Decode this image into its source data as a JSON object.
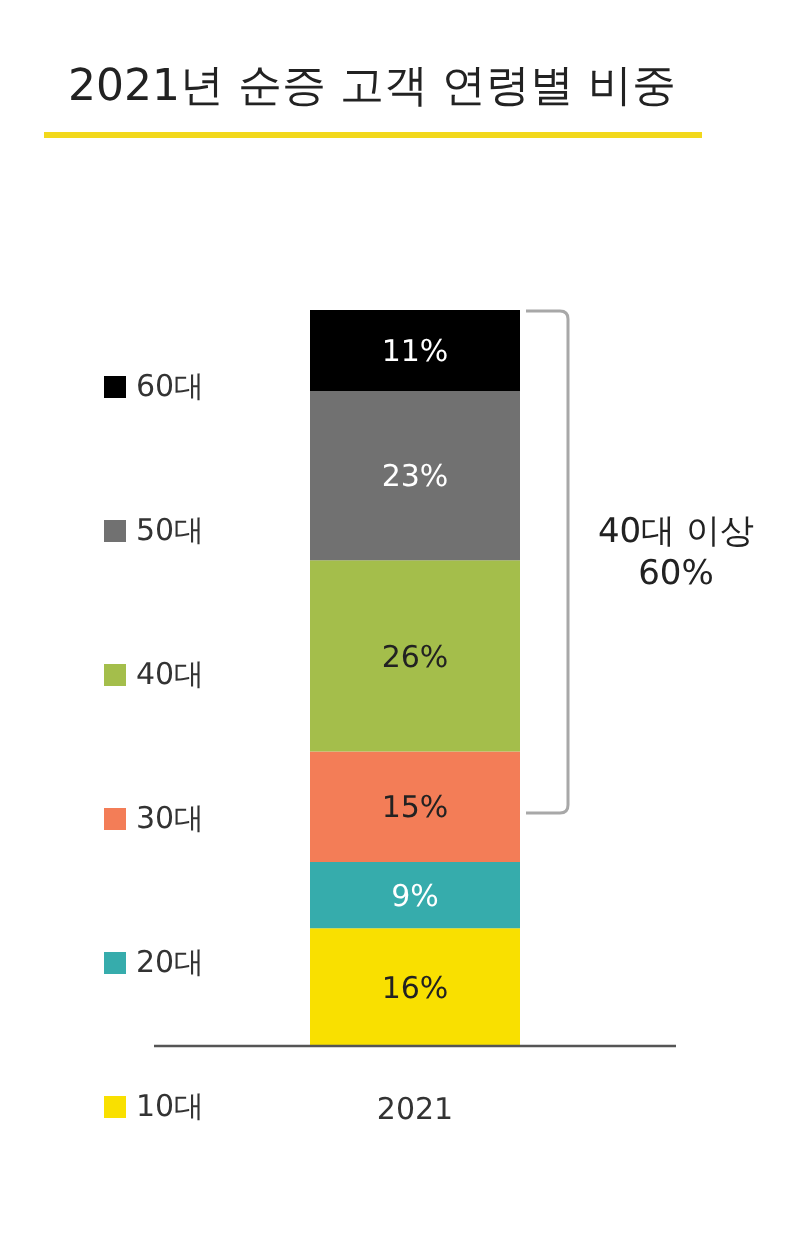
{
  "chart_data": {
    "type": "bar",
    "title": "2021년 순증 고객 연령별 비중",
    "categories": [
      "2021"
    ],
    "stacked": true,
    "series": [
      {
        "name": "10대",
        "color": "#f9e000",
        "values": [
          16
        ],
        "value_labels": [
          "16%"
        ]
      },
      {
        "name": "20대",
        "color": "#36acac",
        "values": [
          9
        ],
        "value_labels": [
          "9%"
        ]
      },
      {
        "name": "30대",
        "color": "#f37d57",
        "values": [
          15
        ],
        "value_labels": [
          "15%"
        ]
      },
      {
        "name": "40대",
        "color": "#a4be4b",
        "values": [
          26
        ],
        "value_labels": [
          "26%"
        ]
      },
      {
        "name": "50대",
        "color": "#717171",
        "values": [
          23
        ],
        "value_labels": [
          "23%"
        ]
      },
      {
        "name": "60대",
        "color": "#000000",
        "values": [
          11
        ],
        "value_labels": [
          "11%"
        ]
      }
    ],
    "annotations": [
      "40대 이상\n60%"
    ],
    "legend": "left",
    "tick_labels": "x"
  }
}
